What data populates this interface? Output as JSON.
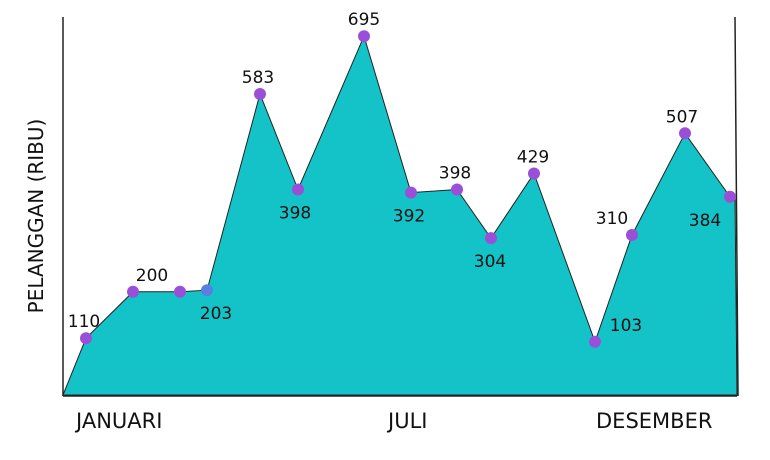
{
  "chart_data": {
    "type": "area",
    "ylabel": "PELANGGAN (RIBU)",
    "xlabel": "",
    "title": "",
    "x_tick_labels": [
      "JANUARI",
      "JULI",
      "DESEMBER"
    ],
    "ylim": [
      0,
      800
    ],
    "grid": false,
    "series": [
      {
        "values": [
          110,
          200,
          200,
          203,
          583,
          398,
          695,
          392,
          398,
          304,
          429,
          103,
          310,
          507,
          384
        ],
        "labels": [
          "110",
          "200",
          "",
          "203",
          "583",
          "398",
          "695",
          "392",
          "398",
          "304",
          "429",
          "103",
          "310",
          "507",
          "384"
        ],
        "color": "#14c3c7"
      }
    ],
    "colors": {
      "fill": "#14c3c7",
      "marker": "#9b4fd8",
      "highlight_marker": "#5b7fe0",
      "stroke": "#222222"
    }
  }
}
